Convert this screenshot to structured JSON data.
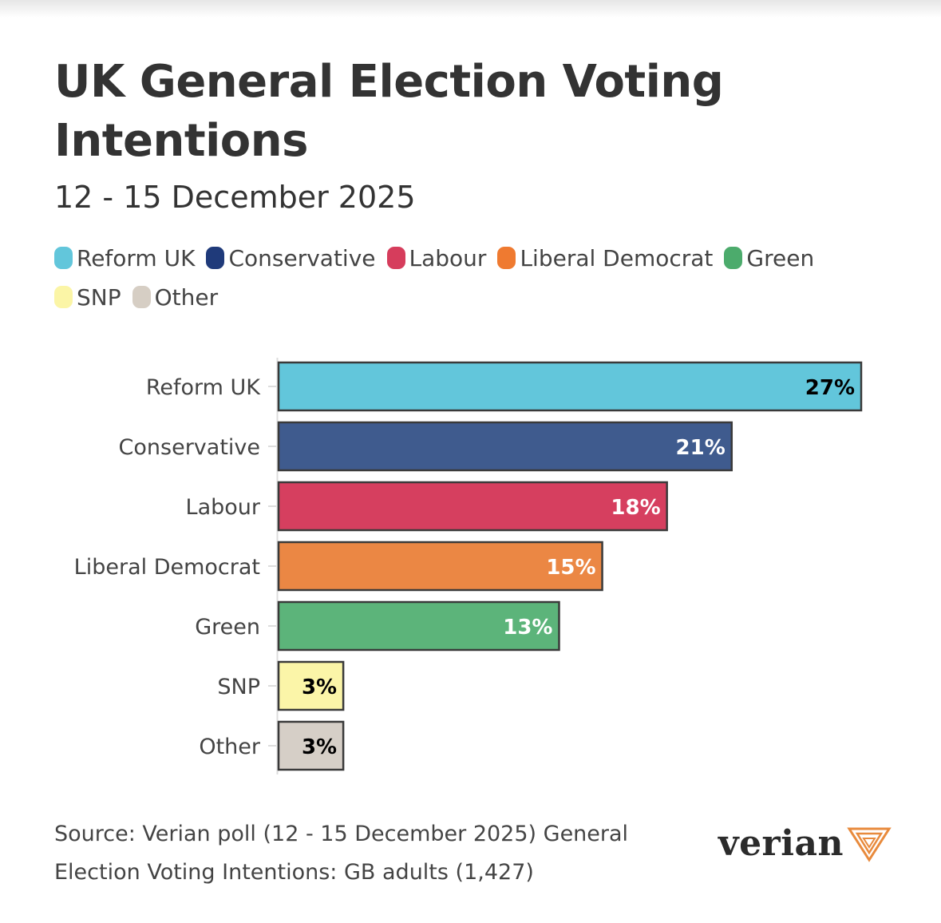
{
  "title": "UK General Election Voting Intentions",
  "subtitle": "12 - 15 December 2025",
  "legend": [
    {
      "label": "Reform UK",
      "color": "#62c6db"
    },
    {
      "label": "Conservative",
      "color": "#1f3a7a"
    },
    {
      "label": "Labour",
      "color": "#d63d5c"
    },
    {
      "label": "Liberal Democrat",
      "color": "#ef7a30"
    },
    {
      "label": "Green",
      "color": "#4cab6c"
    },
    {
      "label": "SNP",
      "color": "#fbf5a6"
    },
    {
      "label": "Other",
      "color": "#d6cec4"
    }
  ],
  "chart_data": {
    "type": "bar",
    "orientation": "horizontal",
    "categories": [
      "Reform UK",
      "Conservative",
      "Labour",
      "Liberal Democrat",
      "Green",
      "SNP",
      "Other"
    ],
    "values": [
      27,
      21,
      18,
      15,
      13,
      3,
      3
    ],
    "value_labels": [
      "27%",
      "21%",
      "18%",
      "15%",
      "13%",
      "3%",
      "3%"
    ],
    "colors": [
      "#62c6db",
      "#3f5b8e",
      "#d63f5f",
      "#eb8744",
      "#5cb47a",
      "#fbf5a8",
      "#d6cfc7"
    ],
    "label_colors": [
      "#000000",
      "#ffffff",
      "#ffffff",
      "#ffffff",
      "#ffffff",
      "#000000",
      "#000000"
    ],
    "xlim": [
      0,
      27
    ],
    "grid": false
  },
  "source": "Source: Verian poll (12 - 15 December 2025) General Election Voting Intentions: GB adults (1,427)",
  "logo": {
    "text": "verian",
    "color": "#e88a3c"
  }
}
